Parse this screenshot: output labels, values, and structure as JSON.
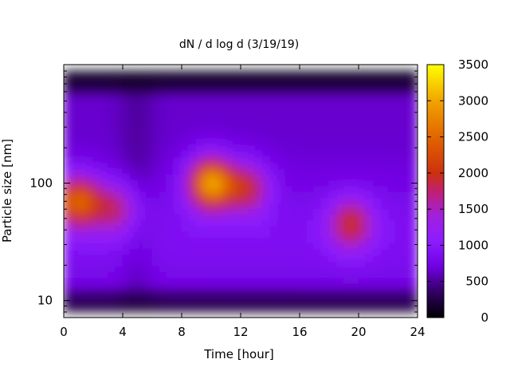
{
  "chart_data": {
    "type": "heatmap",
    "title": "dN / d log d (3/19/19)",
    "xlabel": "Time [hour]",
    "ylabel": "Particle size [nm]",
    "x_range": [
      0,
      24
    ],
    "x_ticks": [
      0,
      4,
      8,
      12,
      16,
      20,
      24
    ],
    "y_scale": "log",
    "y_range": [
      8,
      900
    ],
    "y_ticks": [
      10,
      100
    ],
    "colorbar": {
      "range": [
        0,
        3500
      ],
      "ticks": [
        0,
        500,
        1000,
        1500,
        2000,
        2500,
        3000,
        3500
      ],
      "colormap": "black-purple-blue-red-orange-yellow"
    },
    "features": [
      {
        "time": 1.0,
        "size": 70,
        "value": 2500
      },
      {
        "time": 3.5,
        "size": 60,
        "value": 1700
      },
      {
        "time": 10.0,
        "size": 100,
        "value": 3000
      },
      {
        "time": 12.5,
        "size": 90,
        "value": 1900
      },
      {
        "time": 19.5,
        "size": 45,
        "value": 2000
      }
    ],
    "grid": false,
    "legend": "colorbar-right"
  }
}
